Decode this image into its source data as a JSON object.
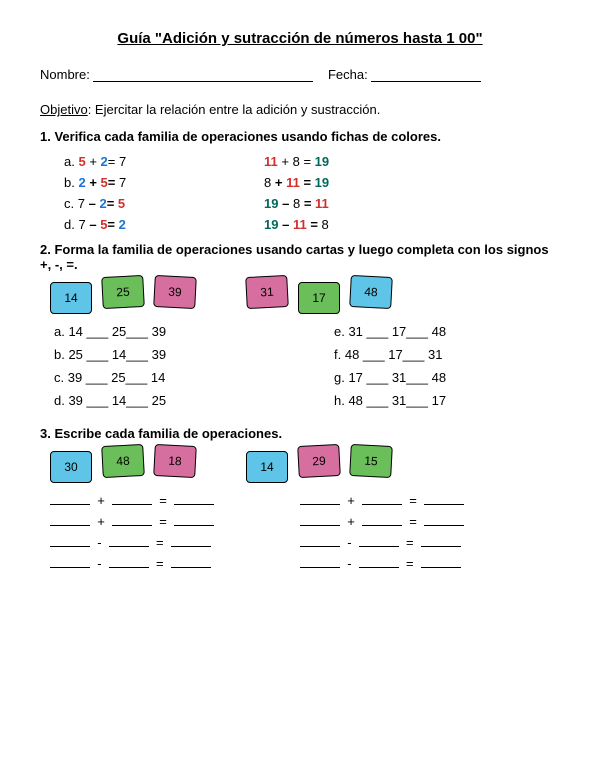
{
  "title": "Guía \"Adición y sutracción de números hasta 1 00\"",
  "nameLabel": "Nombre:",
  "dateLabel": "Fecha:",
  "objectiveLabel": "Objetivo",
  "objectiveText": ": Ejercitar la relación entre la adición y sustracción.",
  "s1": {
    "title": "1. Verifica cada familia de operaciones usando fichas de colores.",
    "left": [
      {
        "label": "a.",
        "a": "5",
        "op": "+",
        "b": "2",
        "eq": "=",
        "r": "7",
        "ca": "c-red",
        "cb": "c-blue"
      },
      {
        "label": "b.",
        "a": "2",
        "op": "+",
        "b": "5",
        "eq": "=",
        "r": "7",
        "ca": "c-blue",
        "cb": "c-red",
        "bold": true
      },
      {
        "label": "c.",
        "a": "7",
        "op": "–",
        "b": "2",
        "eq": "=",
        "r": "5",
        "cb": "c-blue",
        "cr": "c-red",
        "bold": true
      },
      {
        "label": "d.",
        "a": "7",
        "op": "–",
        "b": "5",
        "eq": "=",
        "r": "2",
        "cb": "c-red",
        "cr": "c-blue",
        "bold": true
      }
    ],
    "right": [
      {
        "a": "11",
        "op": "+",
        "b": "8",
        "eq": "=",
        "r": "19",
        "ca": "c-red",
        "cr": "c-dkgreen"
      },
      {
        "a": "8",
        "op": "+",
        "b": "11",
        "eq": "=",
        "r": "19",
        "cb": "c-red",
        "cr": "c-dkgreen",
        "bold": true
      },
      {
        "a": "19",
        "op": "–",
        "b": "8",
        "eq": "=",
        "r": "11",
        "ca": "c-dkgreen",
        "cr": "c-red",
        "bold": true
      },
      {
        "a": "19",
        "op": "–",
        "b": "11",
        "eq": "=",
        "r": "8",
        "ca": "c-dkgreen",
        "cb": "c-red",
        "bold": true
      }
    ]
  },
  "s2": {
    "title": "2. Forma la familia de operaciones usando cartas y luego completa con los signos +, -, =.",
    "groupA": [
      {
        "n": "14",
        "bg": "#5ec5e8"
      },
      {
        "n": "25",
        "bg": "#6bbf5a",
        "lift": "lifted"
      },
      {
        "n": "39",
        "bg": "#d66fa0",
        "lift": "lifted2"
      }
    ],
    "groupB": [
      {
        "n": "31",
        "bg": "#d66fa0",
        "lift": "lifted"
      },
      {
        "n": "17",
        "bg": "#6bbf5a"
      },
      {
        "n": "48",
        "bg": "#5ec5e8",
        "lift": "lifted2"
      }
    ],
    "left": [
      {
        "l": "a.",
        "a": "14",
        "b": "25",
        "c": "39"
      },
      {
        "l": "b.",
        "a": "25",
        "b": "14",
        "c": "39"
      },
      {
        "l": "c.",
        "a": "39",
        "b": "25",
        "c": "14"
      },
      {
        "l": "d.",
        "a": "39",
        "b": "14",
        "c": "25"
      }
    ],
    "right": [
      {
        "l": "e.",
        "a": "31",
        "b": "17",
        "c": "48"
      },
      {
        "l": "f.",
        "a": "48",
        "b": "17",
        "c": "31"
      },
      {
        "l": "g.",
        "a": "17",
        "b": "31",
        "c": "48"
      },
      {
        "l": "h.",
        "a": "48",
        "b": "31",
        "c": "17"
      }
    ]
  },
  "s3": {
    "title": "3. Escribe cada familia de operaciones.",
    "groupA": [
      {
        "n": "30",
        "bg": "#5ec5e8"
      },
      {
        "n": "48",
        "bg": "#6bbf5a",
        "lift": "lifted"
      },
      {
        "n": "18",
        "bg": "#d66fa0",
        "lift": "lifted2"
      }
    ],
    "groupB": [
      {
        "n": "14",
        "bg": "#5ec5e8"
      },
      {
        "n": "29",
        "bg": "#d66fa0",
        "lift": "lifted"
      },
      {
        "n": "15",
        "bg": "#6bbf5a",
        "lift": "lifted2"
      }
    ],
    "ops": [
      "+",
      "+",
      "-",
      "-"
    ]
  }
}
